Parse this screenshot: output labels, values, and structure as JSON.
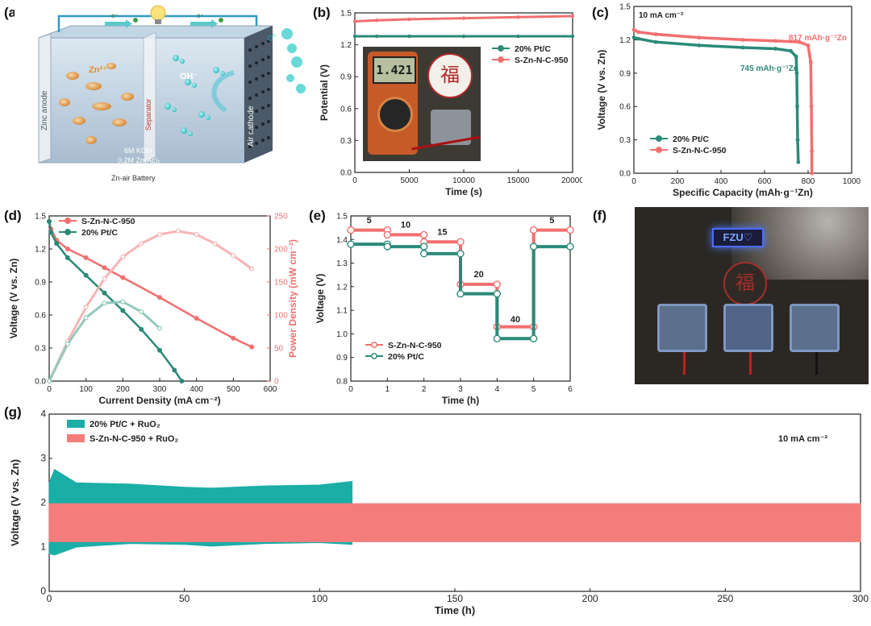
{
  "panels": {
    "a": {
      "label": "(a)",
      "texts": {
        "zinc_anode": "Zinc anode",
        "separator": "Separator",
        "air_cathode": "Air cathode",
        "zn_ion": "Zn²⁺",
        "oh_ion": "OH⁻",
        "electrolyte_1": "6M KOH",
        "electrolyte_2": "0.2M Zn(Ac)₂",
        "battery": "Zn-air Battery",
        "electron_1": "e⁻",
        "electron_2": "e⁻",
        "o2": "O₂"
      }
    },
    "b": {
      "label": "(b)"
    },
    "c": {
      "label": "(c)"
    },
    "d": {
      "label": "(d)"
    },
    "e": {
      "label": "(e)"
    },
    "f": {
      "label": "(f)",
      "texts": {
        "badge": "FZU♡"
      }
    },
    "g": {
      "label": "(g)"
    }
  },
  "chart_data": [
    {
      "id": "b",
      "type": "line",
      "xlabel": "Time (s)",
      "ylabel": "Potential (V)",
      "xlim": [
        0,
        20000
      ],
      "ylim": [
        0.0,
        1.5
      ],
      "xticks": [
        0,
        5000,
        10000,
        15000,
        20000
      ],
      "yticks": [
        0.0,
        0.3,
        0.6,
        0.9,
        1.2,
        1.5
      ],
      "legend_position": "top-right",
      "series": [
        {
          "name": "20% Pt/C",
          "color": "#2a8a78",
          "x": [
            0,
            2000,
            5000,
            10000,
            15000,
            20000
          ],
          "y": [
            1.28,
            1.28,
            1.28,
            1.28,
            1.28,
            1.28
          ]
        },
        {
          "name": "S-Zn-N-C-950",
          "color": "#f26f6f",
          "x": [
            0,
            2000,
            5000,
            10000,
            15000,
            20000
          ],
          "y": [
            1.42,
            1.43,
            1.44,
            1.45,
            1.46,
            1.47
          ]
        }
      ],
      "inset_photo": {
        "display_reading": "1.421",
        "logo_glyph": "福"
      }
    },
    {
      "id": "c",
      "type": "line",
      "title": "10 mA cm⁻²",
      "xlabel": "Specific Capacity (mAh·g⁻¹Zn)",
      "ylabel": "Voltage (V vs. Zn)",
      "xlim": [
        0,
        1000
      ],
      "ylim": [
        0.0,
        1.5
      ],
      "xticks": [
        0,
        200,
        400,
        600,
        800,
        1000
      ],
      "yticks": [
        0.0,
        0.3,
        0.6,
        0.9,
        1.2,
        1.5
      ],
      "legend_position": "bottom-left",
      "annotations": [
        "817 mAh·g⁻¹Zn",
        "745 mAh·g⁻¹Zn"
      ],
      "series": [
        {
          "name": "20% Pt/C",
          "color": "#2a8a78",
          "x": [
            0,
            20,
            100,
            300,
            500,
            650,
            720,
            745,
            748,
            750,
            752,
            755
          ],
          "y": [
            1.22,
            1.21,
            1.18,
            1.15,
            1.13,
            1.12,
            1.1,
            1.05,
            0.9,
            0.6,
            0.3,
            0.1
          ]
        },
        {
          "name": "S-Zn-N-C-950",
          "color": "#f26f6f",
          "x": [
            0,
            20,
            100,
            300,
            500,
            650,
            760,
            800,
            812,
            815,
            817,
            817
          ],
          "y": [
            1.29,
            1.27,
            1.25,
            1.22,
            1.2,
            1.19,
            1.18,
            1.15,
            1.0,
            0.6,
            0.2,
            0.0
          ]
        }
      ]
    },
    {
      "id": "d",
      "type": "line",
      "xlabel": "Current Density (mA cm⁻²)",
      "ylabel": "Voltage (V vs. Zn)",
      "y2label": "Power Density (mW cm⁻²)",
      "xlim": [
        0,
        600
      ],
      "ylim": [
        0.0,
        1.5
      ],
      "y2lim": [
        0,
        250
      ],
      "xticks": [
        0,
        100,
        200,
        300,
        400,
        500,
        600
      ],
      "yticks": [
        0.0,
        0.3,
        0.6,
        0.9,
        1.2,
        1.5
      ],
      "y2ticks": [
        0,
        50,
        100,
        150,
        200,
        250
      ],
      "legend_position": "top-left",
      "series": [
        {
          "name": "S-Zn-N-C-950",
          "axis": "left",
          "color": "#f26f6f",
          "x": [
            0,
            5,
            20,
            50,
            100,
            150,
            200,
            300,
            400,
            500,
            550
          ],
          "y": [
            1.45,
            1.38,
            1.28,
            1.2,
            1.12,
            1.03,
            0.94,
            0.76,
            0.57,
            0.39,
            0.31
          ]
        },
        {
          "name": "20% Pt/C",
          "axis": "left",
          "color": "#2a8a78",
          "x": [
            0,
            5,
            20,
            50,
            100,
            150,
            200,
            250,
            300,
            340,
            360
          ],
          "y": [
            1.45,
            1.35,
            1.25,
            1.12,
            0.96,
            0.8,
            0.64,
            0.47,
            0.28,
            0.1,
            0.0
          ]
        },
        {
          "name": "S-Zn-N-C-950 power",
          "axis": "right",
          "color": "#f7b4b4",
          "x": [
            0,
            50,
            100,
            150,
            200,
            250,
            300,
            350,
            400,
            450,
            500,
            550
          ],
          "y": [
            0,
            60,
            112,
            155,
            188,
            208,
            222,
            227,
            222,
            208,
            190,
            170
          ]
        },
        {
          "name": "20% Pt/C power",
          "axis": "right",
          "color": "#93c9bd",
          "x": [
            0,
            50,
            100,
            150,
            200,
            250,
            300
          ],
          "y": [
            0,
            56,
            96,
            118,
            120,
            105,
            80
          ]
        }
      ]
    },
    {
      "id": "e",
      "type": "line",
      "xlabel": "Time (h)",
      "ylabel": "Voltage (V)",
      "xlim": [
        0,
        6
      ],
      "ylim": [
        0.8,
        1.5
      ],
      "xticks": [
        0,
        1,
        2,
        3,
        4,
        5,
        6
      ],
      "yticks": [
        0.8,
        0.9,
        1.0,
        1.1,
        1.2,
        1.3,
        1.4,
        1.5
      ],
      "legend_position": "bottom-left",
      "step_labels": [
        {
          "text": "5",
          "x": 0.5,
          "y": 1.47
        },
        {
          "text": "10",
          "x": 1.5,
          "y": 1.45
        },
        {
          "text": "15",
          "x": 2.5,
          "y": 1.42
        },
        {
          "text": "20",
          "x": 3.5,
          "y": 1.24
        },
        {
          "text": "40",
          "x": 4.5,
          "y": 1.05
        },
        {
          "text": "5",
          "x": 5.5,
          "y": 1.47
        }
      ],
      "series": [
        {
          "name": "S-Zn-N-C-950",
          "color": "#f26f6f",
          "steps": [
            [
              0,
              1,
              1.44
            ],
            [
              1,
              2,
              1.42
            ],
            [
              2,
              3,
              1.39
            ],
            [
              3,
              4,
              1.21
            ],
            [
              4,
              5,
              1.03
            ],
            [
              5,
              6,
              1.44
            ]
          ]
        },
        {
          "name": "20% Pt/C",
          "color": "#2a8a78",
          "steps": [
            [
              0,
              1,
              1.38
            ],
            [
              1,
              2,
              1.37
            ],
            [
              2,
              3,
              1.34
            ],
            [
              3,
              4,
              1.17
            ],
            [
              4,
              5,
              0.98
            ],
            [
              5,
              6,
              1.37
            ]
          ]
        }
      ]
    },
    {
      "id": "g",
      "type": "area",
      "title": "10 mA cm⁻²",
      "xlabel": "Time (h)",
      "ylabel": "Voltage (V vs. Zn)",
      "xlim": [
        0,
        300
      ],
      "ylim": [
        0,
        4
      ],
      "xticks": [
        0,
        50,
        100,
        150,
        200,
        250,
        300
      ],
      "yticks": [
        0,
        1,
        2,
        3,
        4
      ],
      "legend_position": "top-left",
      "series": [
        {
          "name": "20% Pt/C + RuO₂",
          "color": "#1aaea6",
          "x": [
            0,
            2,
            10,
            30,
            50,
            60,
            80,
            100,
            112
          ],
          "upper": [
            2.45,
            2.75,
            2.45,
            2.42,
            2.35,
            2.33,
            2.38,
            2.4,
            2.48
          ],
          "lower": [
            0.85,
            0.82,
            1.0,
            1.08,
            1.06,
            1.02,
            1.08,
            1.1,
            1.06
          ]
        },
        {
          "name": "S-Zn-N-C-950 + RuO₂",
          "color": "#f47d7b",
          "x": [
            0,
            300
          ],
          "upper": [
            1.98,
            1.98
          ],
          "lower": [
            1.12,
            1.12
          ]
        }
      ]
    }
  ]
}
